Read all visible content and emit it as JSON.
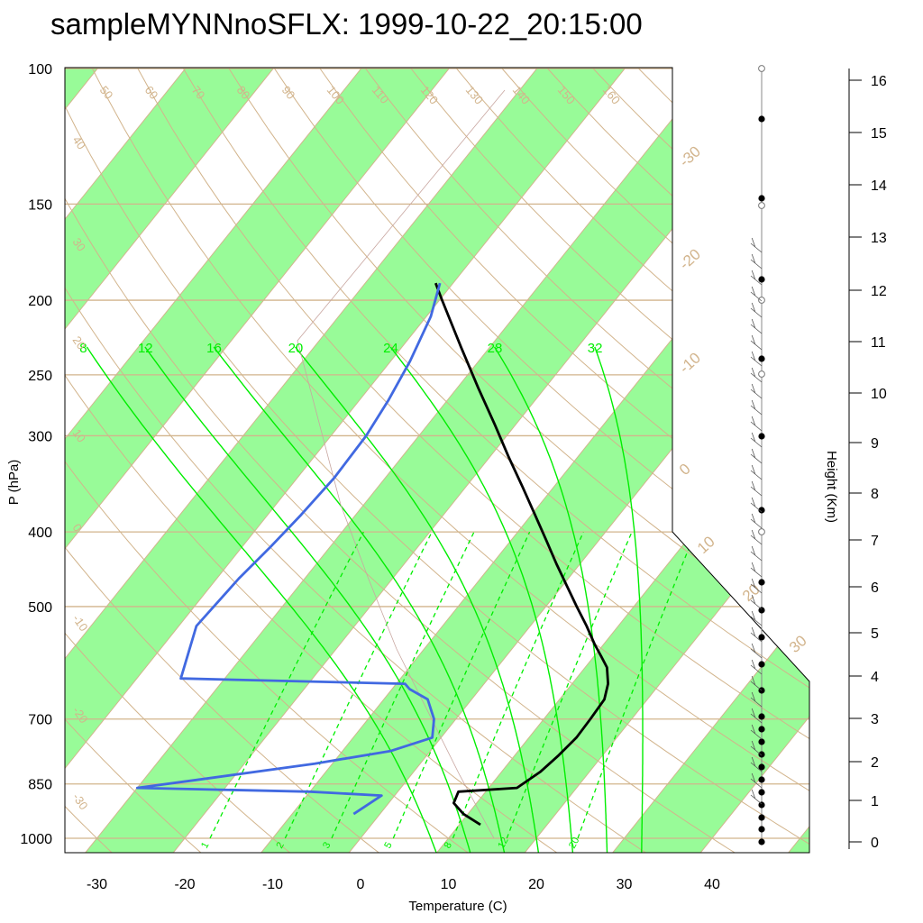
{
  "title": "sampleMYNNnoSFLX: 1999-10-22_20:15:00",
  "colors": {
    "green_band": "#98fb98",
    "tan": "#d2b48c",
    "mixing": "#00ee00",
    "dewpoint": "#4169e1",
    "temperature": "#000000",
    "background": "#ffffff"
  },
  "chart_data": {
    "type": "line",
    "chart_kind": "skew-T log-P",
    "title": "sampleMYNNnoSFLX: 1999-10-22_20:15:00",
    "xlabel": "Temperature (C)",
    "ylabel": "P (hPa)",
    "y2label": "Height (Km)",
    "x_ticks": [
      -30,
      -20,
      -10,
      0,
      10,
      20,
      30,
      40
    ],
    "p_ticks": [
      100,
      150,
      200,
      250,
      300,
      400,
      500,
      700,
      850,
      1000
    ],
    "height_ticks": [
      0,
      1,
      2,
      3,
      4,
      5,
      6,
      7,
      8,
      9,
      10,
      11,
      12,
      13,
      14,
      15,
      16
    ],
    "x_range_at_1000hPa": [
      -34,
      50
    ],
    "p_range": [
      100,
      1050
    ],
    "y_scale": "log",
    "isotherm_labels": [
      -30,
      -20,
      -10,
      0,
      10,
      20,
      30
    ],
    "upper_labels": [
      "50",
      "60",
      "70",
      "80",
      "90",
      "100",
      "110",
      "120",
      "130",
      "140",
      "150",
      "160"
    ],
    "left_labels": [
      "40",
      "30",
      "20",
      "10",
      "0",
      "-10",
      "-20",
      "-30"
    ],
    "right_labels": [
      "-30",
      "-20",
      "-10",
      "0",
      "10",
      "20",
      "30"
    ],
    "moist_adiabat_labels": [
      "8",
      "12",
      "16",
      "20",
      "24",
      "28",
      "32"
    ],
    "mixing_ratio_labels": [
      "1",
      "2",
      "3",
      "5",
      "8",
      "12",
      "20"
    ],
    "series": [
      {
        "name": "Temperature",
        "pressure": [
          960,
          930,
          900,
          870,
          860,
          820,
          780,
          740,
          700,
          660,
          630,
          600,
          580,
          560,
          530,
          500,
          470,
          440,
          410,
          380,
          350,
          320,
          290,
          260,
          230,
          200,
          190
        ],
        "temperature": [
          12.4,
          9.5,
          7.4,
          6.9,
          13.2,
          14.4,
          15.0,
          15.4,
          15.3,
          15.1,
          14.1,
          12.5,
          10.8,
          9.0,
          6.4,
          3.5,
          0.5,
          -2.7,
          -6.0,
          -9.6,
          -13.5,
          -17.8,
          -22.4,
          -27.6,
          -33.3,
          -39.7,
          -42.0
        ]
      },
      {
        "name": "Dewpoint",
        "pressure": [
          930,
          880,
          870,
          860,
          840,
          800,
          770,
          740,
          700,
          660,
          640,
          630,
          620,
          530,
          460,
          420,
          380,
          340,
          300,
          270,
          240,
          210,
          190
        ],
        "temperature": [
          -3.0,
          -1.5,
          -10.0,
          -30.0,
          -24.0,
          -12.0,
          -4.5,
          -1.0,
          -2.5,
          -5.0,
          -8.0,
          -9.0,
          -35.0,
          -38.0,
          -37.5,
          -36.8,
          -36.2,
          -35.8,
          -36.0,
          -36.7,
          -37.8,
          -39.5,
          -41.5
        ]
      }
    ]
  }
}
